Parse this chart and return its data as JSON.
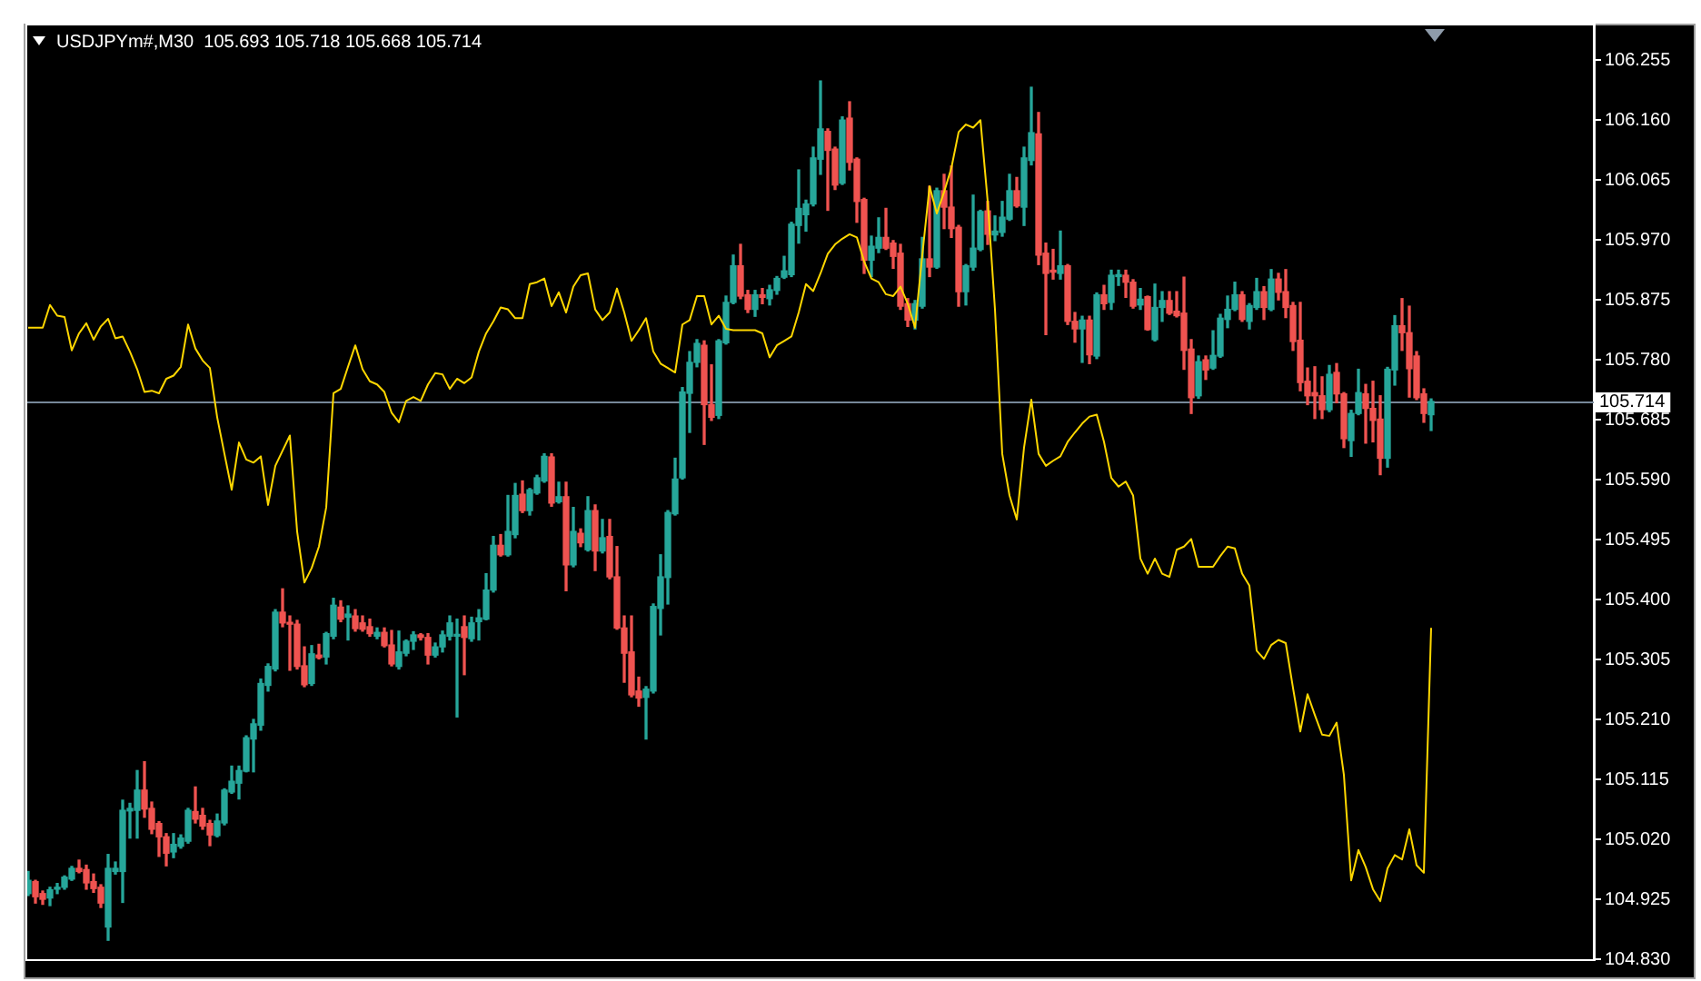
{
  "chart_data": {
    "type": "candlestick",
    "title": "USDJPYm#,M30  105.693 105.718 105.668 105.714",
    "categories": [
      null,
      null,
      null,
      null,
      null,
      null,
      null,
      null,
      null,
      null,
      null,
      null,
      null,
      null,
      null,
      null,
      null,
      null,
      null,
      null,
      null,
      null,
      null,
      null,
      null,
      null,
      null,
      null,
      null,
      null,
      null,
      null,
      null,
      null,
      null,
      null,
      null,
      null,
      null,
      null,
      null,
      null,
      null,
      null,
      null,
      null,
      null,
      null,
      null,
      null,
      null,
      null,
      null,
      null,
      null,
      null,
      null,
      null,
      null,
      null,
      null,
      null,
      null,
      null,
      null,
      null,
      null,
      null,
      null,
      null,
      null,
      null,
      null,
      null,
      null,
      null,
      null,
      null,
      null,
      null,
      null,
      null,
      null,
      null,
      null,
      null,
      null,
      null,
      null,
      null,
      null,
      null,
      null,
      null,
      null,
      null,
      null,
      null,
      null,
      null,
      null,
      null,
      null,
      null,
      null,
      null,
      null,
      null,
      null,
      null,
      null,
      null,
      null,
      null,
      null,
      null,
      null,
      null,
      null,
      null,
      null,
      null,
      null,
      null,
      null,
      null,
      null,
      null,
      null,
      null,
      null,
      null,
      null,
      null,
      null,
      null,
      null,
      null,
      null,
      null,
      null,
      null,
      null,
      null,
      null,
      null,
      null,
      null,
      null,
      null,
      null,
      null,
      null,
      null,
      null,
      null,
      null,
      null,
      null,
      null,
      null,
      null,
      null,
      null,
      null,
      null,
      null,
      null,
      null,
      null,
      null,
      null,
      null,
      null,
      null,
      null,
      null,
      null,
      null,
      null,
      null,
      null,
      null,
      null,
      null,
      null,
      null,
      null,
      null,
      null,
      null,
      null,
      null,
      null
    ],
    "ohlc": [
      [
        104.934,
        104.969,
        104.931,
        104.955
      ],
      [
        104.953,
        104.955,
        104.919,
        104.929
      ],
      [
        104.934,
        104.938,
        104.917,
        104.925
      ],
      [
        104.927,
        104.944,
        104.915,
        104.94
      ],
      [
        104.941,
        104.95,
        104.934,
        104.944
      ],
      [
        104.944,
        104.962,
        104.941,
        104.96
      ],
      [
        104.957,
        104.977,
        104.955,
        104.974
      ],
      [
        104.974,
        104.987,
        104.967,
        104.969
      ],
      [
        104.972,
        104.979,
        104.941,
        104.951
      ],
      [
        104.953,
        104.965,
        104.936,
        104.942
      ],
      [
        104.944,
        104.948,
        104.912,
        104.919
      ],
      [
        104.881,
        104.996,
        104.86,
        104.974
      ],
      [
        104.969,
        104.984,
        104.965,
        104.974
      ],
      [
        104.969,
        105.082,
        104.92,
        105.066
      ],
      [
        105.065,
        105.077,
        105.022,
        105.069
      ],
      [
        105.066,
        105.129,
        105.022,
        105.098
      ],
      [
        105.098,
        105.143,
        105.055,
        105.068
      ],
      [
        105.069,
        105.079,
        105.029,
        105.036
      ],
      [
        105.045,
        105.048,
        104.993,
        105.024
      ],
      [
        105.024,
        105.029,
        104.978,
        104.998
      ],
      [
        105.0,
        105.029,
        104.991,
        105.012
      ],
      [
        105.009,
        105.027,
        105.006,
        105.022
      ],
      [
        105.017,
        105.069,
        105.014,
        105.066
      ],
      [
        105.064,
        105.103,
        105.046,
        105.052
      ],
      [
        105.058,
        105.069,
        105.036,
        105.041
      ],
      [
        105.045,
        105.05,
        105.01,
        105.027
      ],
      [
        105.026,
        105.06,
        105.024,
        105.049
      ],
      [
        105.046,
        105.1,
        105.043,
        105.098
      ],
      [
        105.095,
        105.136,
        105.093,
        105.112
      ],
      [
        105.109,
        105.136,
        105.084,
        105.129
      ],
      [
        105.128,
        105.184,
        105.127,
        105.181
      ],
      [
        105.179,
        105.21,
        105.127,
        105.203
      ],
      [
        105.201,
        105.274,
        105.193,
        105.267
      ],
      [
        105.264,
        105.298,
        105.255,
        105.294
      ],
      [
        105.29,
        105.384,
        105.287,
        105.38
      ],
      [
        105.38,
        105.417,
        105.357,
        105.363
      ],
      [
        105.363,
        105.374,
        105.288,
        105.361
      ],
      [
        105.361,
        105.367,
        105.29,
        105.294
      ],
      [
        105.295,
        105.325,
        105.262,
        105.265
      ],
      [
        105.267,
        105.327,
        105.264,
        105.314
      ],
      [
        105.312,
        105.329,
        105.306,
        105.308
      ],
      [
        105.309,
        105.348,
        105.298,
        105.346
      ],
      [
        105.342,
        105.402,
        105.338,
        105.391
      ],
      [
        105.388,
        105.398,
        105.365,
        105.369
      ],
      [
        105.372,
        105.39,
        105.336,
        105.377
      ],
      [
        105.374,
        105.384,
        105.35,
        105.354
      ],
      [
        105.363,
        105.374,
        105.35,
        105.353
      ],
      [
        105.357,
        105.369,
        105.342,
        105.346
      ],
      [
        105.342,
        105.355,
        105.338,
        105.348
      ],
      [
        105.348,
        105.355,
        105.325,
        105.327
      ],
      [
        105.328,
        105.351,
        105.295,
        105.298
      ],
      [
        105.294,
        105.35,
        105.29,
        105.317
      ],
      [
        105.315,
        105.336,
        105.311,
        105.334
      ],
      [
        105.334,
        105.349,
        105.321,
        105.344
      ],
      [
        105.344,
        105.346,
        105.336,
        105.34
      ],
      [
        105.34,
        105.346,
        105.298,
        105.312
      ],
      [
        105.312,
        105.331,
        105.309,
        105.325
      ],
      [
        105.325,
        105.35,
        105.317,
        105.344
      ],
      [
        105.342,
        105.374,
        105.336,
        105.363
      ],
      [
        105.342,
        105.369,
        105.214,
        105.344
      ],
      [
        105.357,
        105.374,
        105.281,
        105.34
      ],
      [
        105.338,
        105.372,
        105.334,
        105.363
      ],
      [
        105.365,
        105.384,
        105.336,
        105.371
      ],
      [
        105.369,
        105.441,
        105.368,
        105.415
      ],
      [
        105.415,
        105.5,
        105.412,
        105.486
      ],
      [
        105.486,
        105.503,
        105.469,
        105.471
      ],
      [
        105.471,
        105.565,
        105.469,
        105.508
      ],
      [
        105.503,
        105.584,
        105.498,
        105.565
      ],
      [
        105.567,
        105.588,
        105.538,
        105.541
      ],
      [
        105.541,
        105.576,
        105.534,
        105.574
      ],
      [
        105.569,
        105.597,
        105.567,
        105.593
      ],
      [
        105.588,
        105.631,
        105.586,
        105.627
      ],
      [
        105.626,
        105.631,
        105.548,
        105.553
      ],
      [
        105.555,
        105.586,
        105.553,
        105.563
      ],
      [
        105.563,
        105.586,
        105.414,
        105.455
      ],
      [
        105.455,
        105.546,
        105.452,
        105.508
      ],
      [
        105.505,
        105.512,
        105.484,
        105.49
      ],
      [
        105.479,
        105.563,
        105.477,
        105.541
      ],
      [
        105.541,
        105.55,
        105.446,
        105.477
      ],
      [
        105.477,
        105.527,
        105.474,
        105.498
      ],
      [
        105.5,
        105.527,
        105.433,
        105.436
      ],
      [
        105.436,
        105.484,
        105.353,
        105.355
      ],
      [
        105.355,
        105.374,
        105.269,
        105.315
      ],
      [
        105.317,
        105.374,
        105.246,
        105.249
      ],
      [
        105.255,
        105.277,
        105.231,
        105.244
      ],
      [
        105.245,
        105.262,
        105.179,
        105.258
      ],
      [
        105.255,
        105.393,
        105.252,
        105.389
      ],
      [
        105.386,
        105.471,
        105.344,
        105.436
      ],
      [
        105.435,
        105.541,
        105.393,
        105.538
      ],
      [
        105.536,
        105.624,
        105.534,
        105.591
      ],
      [
        105.593,
        105.736,
        105.591,
        105.729
      ],
      [
        105.727,
        105.793,
        105.665,
        105.776
      ],
      [
        105.776,
        105.812,
        105.769,
        105.806
      ],
      [
        105.803,
        105.81,
        105.646,
        105.709
      ],
      [
        105.709,
        105.772,
        105.684,
        105.689
      ],
      [
        105.692,
        105.812,
        105.687,
        105.81
      ],
      [
        105.807,
        105.881,
        105.805,
        105.871
      ],
      [
        105.871,
        105.946,
        105.869,
        105.929
      ],
      [
        105.929,
        105.963,
        105.877,
        105.881
      ],
      [
        105.883,
        105.89,
        105.855,
        105.86
      ],
      [
        105.86,
        105.89,
        105.849,
        105.883
      ],
      [
        105.883,
        105.893,
        105.869,
        105.879
      ],
      [
        105.877,
        105.898,
        105.867,
        105.891
      ],
      [
        105.89,
        105.912,
        105.884,
        105.909
      ],
      [
        105.911,
        105.944,
        105.909,
        105.921
      ],
      [
        105.915,
        105.998,
        105.912,
        105.995
      ],
      [
        105.993,
        106.081,
        105.965,
        106.02
      ],
      [
        106.01,
        106.033,
        105.984,
        106.027
      ],
      [
        106.027,
        106.117,
        106.024,
        106.1
      ],
      [
        106.098,
        106.222,
        106.074,
        106.146
      ],
      [
        106.142,
        106.146,
        106.017,
        106.112
      ],
      [
        106.114,
        106.117,
        106.05,
        106.057
      ],
      [
        106.06,
        106.165,
        106.058,
        106.16
      ],
      [
        106.163,
        106.189,
        106.081,
        106.093
      ],
      [
        106.098,
        106.1,
        105.998,
        106.031
      ],
      [
        106.034,
        106.036,
        105.917,
        105.938
      ],
      [
        105.938,
        105.976,
        105.912,
        105.96
      ],
      [
        105.957,
        106.005,
        105.95,
        105.974
      ],
      [
        105.974,
        106.02,
        105.955,
        105.957
      ],
      [
        105.965,
        105.969,
        105.925,
        105.944
      ],
      [
        105.949,
        105.963,
        105.86,
        105.865
      ],
      [
        105.869,
        105.877,
        105.833,
        105.843
      ],
      [
        105.843,
        105.874,
        105.829,
        105.869
      ],
      [
        105.865,
        105.974,
        105.862,
        105.94
      ],
      [
        105.94,
        106.055,
        105.912,
        105.927
      ],
      [
        105.927,
        106.052,
        105.925,
        106.048
      ],
      [
        106.048,
        106.074,
        105.988,
        106.022
      ],
      [
        106.022,
        106.087,
        105.974,
        105.988
      ],
      [
        105.99,
        105.993,
        105.865,
        105.888
      ],
      [
        105.888,
        105.931,
        105.867,
        105.929
      ],
      [
        105.927,
        106.041,
        105.922,
        105.957
      ],
      [
        105.955,
        106.017,
        105.953,
        106.015
      ],
      [
        106.016,
        106.031,
        105.963,
        105.979
      ],
      [
        105.978,
        106.008,
        105.969,
        105.984
      ],
      [
        105.982,
        106.031,
        105.976,
        106.006
      ],
      [
        106.003,
        106.074,
        106.001,
        106.048
      ],
      [
        106.048,
        106.069,
        106.022,
        106.024
      ],
      [
        106.022,
        106.117,
        105.993,
        106.1
      ],
      [
        106.096,
        106.212,
        106.089,
        106.14
      ],
      [
        106.138,
        106.172,
        105.931,
        105.946
      ],
      [
        105.949,
        105.965,
        105.82,
        105.917
      ],
      [
        105.922,
        105.955,
        105.908,
        105.919
      ],
      [
        105.917,
        105.984,
        105.908,
        105.929
      ],
      [
        105.929,
        105.931,
        105.836,
        105.841
      ],
      [
        105.841,
        105.855,
        105.808,
        105.829
      ],
      [
        105.829,
        105.849,
        105.776,
        105.843
      ],
      [
        105.843,
        105.849,
        105.774,
        105.788
      ],
      [
        105.786,
        105.886,
        105.782,
        105.883
      ],
      [
        105.883,
        105.898,
        105.86,
        105.869
      ],
      [
        105.871,
        105.922,
        105.86,
        105.914
      ],
      [
        105.912,
        105.922,
        105.898,
        105.914
      ],
      [
        105.914,
        105.922,
        105.879,
        105.903
      ],
      [
        105.903,
        105.907,
        105.862,
        105.865
      ],
      [
        105.867,
        105.893,
        105.86,
        105.876
      ],
      [
        105.88,
        105.881,
        105.827,
        105.828
      ],
      [
        105.812,
        105.9,
        105.81,
        105.863
      ],
      [
        105.863,
        105.888,
        105.841,
        105.874
      ],
      [
        105.874,
        105.888,
        105.852,
        105.854
      ],
      [
        105.857,
        105.888,
        105.848,
        105.85
      ],
      [
        105.854,
        105.911,
        105.765,
        105.795
      ],
      [
        105.797,
        105.812,
        105.695,
        105.72
      ],
      [
        105.723,
        105.786,
        105.719,
        105.777
      ],
      [
        105.78,
        105.786,
        105.749,
        105.764
      ],
      [
        105.767,
        105.826,
        105.765,
        105.787
      ],
      [
        105.786,
        105.852,
        105.784,
        105.846
      ],
      [
        105.844,
        105.881,
        105.831,
        105.86
      ],
      [
        105.86,
        105.903,
        105.858,
        105.883
      ],
      [
        105.883,
        105.888,
        105.841,
        105.844
      ],
      [
        105.841,
        105.869,
        105.829,
        105.866
      ],
      [
        105.863,
        105.909,
        105.86,
        105.888
      ],
      [
        105.888,
        105.896,
        105.844,
        105.863
      ],
      [
        105.86,
        105.923,
        105.858,
        105.908
      ],
      [
        105.908,
        105.917,
        105.875,
        105.887
      ],
      [
        105.888,
        105.923,
        105.847,
        105.863
      ],
      [
        105.866,
        105.871,
        105.795,
        105.809
      ],
      [
        105.811,
        105.871,
        105.731,
        105.744
      ],
      [
        105.746,
        105.767,
        105.709,
        105.723
      ],
      [
        105.728,
        105.769,
        105.687,
        105.723
      ],
      [
        105.723,
        105.753,
        105.687,
        105.701
      ],
      [
        105.701,
        105.771,
        105.698,
        105.757
      ],
      [
        105.76,
        105.774,
        105.712,
        105.726
      ],
      [
        105.726,
        105.728,
        105.641,
        105.655
      ],
      [
        105.652,
        105.7,
        105.627,
        105.695
      ],
      [
        105.695,
        105.765,
        105.693,
        105.728
      ],
      [
        105.726,
        105.741,
        105.648,
        105.703
      ],
      [
        105.703,
        105.746,
        105.65,
        105.684
      ],
      [
        105.686,
        105.723,
        105.598,
        105.624
      ],
      [
        105.624,
        105.768,
        105.61,
        105.765
      ],
      [
        105.764,
        105.85,
        105.74,
        105.834
      ],
      [
        105.834,
        105.877,
        105.795,
        105.823
      ],
      [
        105.823,
        105.865,
        105.721,
        105.766
      ],
      [
        105.786,
        105.793,
        105.717,
        105.72
      ],
      [
        105.726,
        105.734,
        105.681,
        105.695
      ],
      [
        105.693,
        105.718,
        105.668,
        105.714
      ]
    ],
    "colors": [
      "#26a69a",
      "#ef5350",
      "#ef5350",
      "#26a69a",
      "#26a69a",
      "#26a69a",
      "#26a69a",
      "#ef5350",
      "#ef5350",
      "#ef5350",
      "#ef5350",
      "#26a69a",
      "#26a69a",
      "#26a69a",
      "#26a69a",
      "#26a69a",
      "#ef5350",
      "#ef5350",
      "#ef5350",
      "#ef5350",
      "#26a69a",
      "#26a69a",
      "#26a69a",
      "#ef5350",
      "#ef5350",
      "#ef5350",
      "#26a69a",
      "#26a69a",
      "#26a69a",
      "#26a69a",
      "#26a69a",
      "#26a69a",
      "#26a69a",
      "#26a69a",
      "#26a69a",
      "#ef5350",
      "#ef5350",
      "#ef5350",
      "#ef5350",
      "#26a69a",
      "#ef5350",
      "#26a69a",
      "#26a69a",
      "#ef5350",
      "#26a69a",
      "#ef5350",
      "#ef5350",
      "#ef5350",
      "#26a69a",
      "#ef5350",
      "#ef5350",
      "#26a69a",
      "#26a69a",
      "#26a69a",
      "#ef5350",
      "#ef5350",
      "#26a69a",
      "#26a69a",
      "#26a69a",
      "#26a69a",
      "#ef5350",
      "#26a69a",
      "#26a69a",
      "#26a69a",
      "#26a69a",
      "#ef5350",
      "#26a69a",
      "#26a69a",
      "#ef5350",
      "#26a69a",
      "#26a69a",
      "#26a69a",
      "#ef5350",
      "#26a69a",
      "#ef5350",
      "#26a69a",
      "#ef5350",
      "#26a69a",
      "#ef5350",
      "#26a69a",
      "#ef5350",
      "#ef5350",
      "#ef5350",
      "#ef5350",
      "#ef5350",
      "#26a69a",
      "#26a69a",
      "#26a69a",
      "#26a69a",
      "#26a69a",
      "#26a69a",
      "#26a69a",
      "#26a69a",
      "#ef5350",
      "#ef5350",
      "#26a69a",
      "#26a69a",
      "#26a69a",
      "#ef5350",
      "#ef5350",
      "#26a69a",
      "#ef5350",
      "#26a69a",
      "#26a69a",
      "#26a69a",
      "#26a69a",
      "#26a69a",
      "#26a69a",
      "#26a69a",
      "#26a69a",
      "#ef5350",
      "#ef5350",
      "#26a69a",
      "#ef5350",
      "#ef5350",
      "#ef5350",
      "#26a69a",
      "#26a69a",
      "#ef5350",
      "#ef5350",
      "#ef5350",
      "#ef5350",
      "#26a69a",
      "#26a69a",
      "#ef5350",
      "#26a69a",
      "#ef5350",
      "#ef5350",
      "#ef5350",
      "#26a69a",
      "#26a69a",
      "#26a69a",
      "#ef5350",
      "#26a69a",
      "#26a69a",
      "#26a69a",
      "#ef5350",
      "#26a69a",
      "#26a69a",
      "#ef5350",
      "#ef5350",
      "#ef5350",
      "#26a69a",
      "#ef5350",
      "#ef5350",
      "#26a69a",
      "#ef5350",
      "#26a69a",
      "#ef5350",
      "#26a69a",
      "#26a69a",
      "#ef5350",
      "#ef5350",
      "#26a69a",
      "#ef5350",
      "#26a69a",
      "#26a69a",
      "#ef5350",
      "#ef5350",
      "#ef5350",
      "#ef5350",
      "#26a69a",
      "#ef5350",
      "#26a69a",
      "#26a69a",
      "#26a69a",
      "#26a69a",
      "#ef5350",
      "#26a69a",
      "#26a69a",
      "#ef5350",
      "#26a69a",
      "#ef5350",
      "#ef5350",
      "#ef5350",
      "#ef5350",
      "#ef5350",
      "#ef5350",
      "#ef5350",
      "#26a69a",
      "#ef5350",
      "#ef5350",
      "#26a69a",
      "#26a69a",
      "#ef5350",
      "#ef5350",
      "#ef5350",
      "#26a69a",
      "#26a69a",
      "#ef5350",
      "#ef5350",
      "#ef5350",
      "#ef5350",
      "#26a69a"
    ],
    "series": [
      {
        "type": "line",
        "color": "#ffd700",
        "values": [
          105.831,
          105.831,
          105.831,
          105.867,
          105.85,
          105.848,
          105.795,
          105.822,
          105.838,
          105.812,
          105.833,
          105.845,
          105.814,
          105.817,
          105.793,
          105.765,
          105.729,
          105.731,
          105.727,
          105.75,
          105.755,
          105.769,
          105.836,
          105.798,
          105.779,
          105.767,
          105.689,
          105.631,
          105.574,
          105.649,
          105.622,
          105.617,
          105.627,
          105.55,
          105.612,
          105.636,
          105.66,
          105.508,
          105.427,
          105.45,
          105.484,
          105.546,
          105.727,
          105.734,
          105.769,
          105.803,
          105.765,
          105.746,
          105.741,
          105.729,
          105.696,
          105.681,
          105.715,
          105.721,
          105.715,
          105.741,
          105.759,
          105.757,
          105.734,
          105.75,
          105.743,
          105.752,
          105.793,
          105.822,
          105.841,
          105.863,
          105.86,
          105.846,
          105.846,
          105.9,
          105.903,
          105.909,
          105.865,
          105.887,
          105.855,
          105.896,
          105.914,
          105.917,
          105.86,
          105.843,
          105.855,
          105.893,
          105.855,
          105.81,
          105.827,
          105.846,
          105.793,
          105.774,
          105.767,
          105.76,
          105.836,
          105.843,
          105.881,
          105.881,
          105.836,
          105.85,
          105.829,
          105.827,
          105.827,
          105.827,
          105.827,
          105.822,
          105.784,
          105.803,
          105.81,
          105.817,
          105.855,
          105.9,
          105.889,
          105.917,
          105.948,
          105.963,
          105.972,
          105.979,
          105.974,
          105.936,
          105.909,
          105.903,
          105.884,
          105.881,
          105.896,
          105.869,
          105.831,
          105.946,
          106.055,
          106.012,
          106.046,
          106.084,
          106.141,
          106.153,
          106.148,
          106.16,
          106.031,
          105.86,
          105.631,
          105.565,
          105.527,
          105.641,
          105.717,
          105.631,
          105.612,
          105.62,
          105.627,
          105.65,
          105.665,
          105.679,
          105.69,
          105.693,
          105.65,
          105.593,
          105.579,
          105.587,
          105.565,
          105.465,
          105.441,
          105.465,
          105.441,
          105.436,
          105.479,
          105.484,
          105.496,
          105.452,
          105.452,
          105.452,
          105.469,
          105.484,
          105.481,
          105.441,
          105.422,
          105.319,
          105.306,
          105.328,
          105.336,
          105.331,
          105.26,
          105.191,
          105.25,
          105.217,
          105.186,
          105.184,
          105.205,
          105.122,
          104.955,
          105.003,
          104.976,
          104.941,
          104.922,
          104.974,
          104.995,
          104.988,
          105.036,
          104.979,
          104.967,
          105.355
        ]
      }
    ],
    "ylim": [
      104.83,
      106.31
    ],
    "yticks": [
      {
        "value": 104.83,
        "label": "104.830"
      },
      104.925,
      {
        "value": 105.02,
        "label": "105.020"
      },
      105.115,
      {
        "value": 105.21,
        "label": "105.210"
      },
      105.305,
      {
        "value": 105.4,
        "label": "105.400"
      },
      105.495,
      {
        "value": 105.59,
        "label": "105.590"
      },
      105.685,
      {
        "value": 105.78,
        "label": "105.780"
      },
      105.875,
      {
        "value": 105.97,
        "label": "105.970"
      },
      106.065,
      {
        "value": 106.16,
        "label": "106.160"
      },
      106.255
    ],
    "ref_lines": [
      {
        "axis": "y",
        "value": 105.714,
        "label": "105.714",
        "color": "#778899"
      }
    ],
    "grid": false,
    "legend": false,
    "tick_labels": "y"
  }
}
